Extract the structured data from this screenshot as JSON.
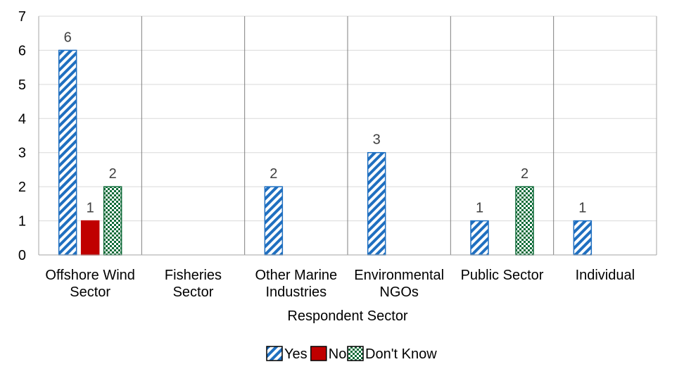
{
  "chart_data": {
    "type": "bar",
    "xlabel": "Respondent Sector",
    "ylabel": "",
    "ylim": [
      0,
      7
    ],
    "yticks": [
      0,
      1,
      2,
      3,
      4,
      5,
      6,
      7
    ],
    "grid": true,
    "legend_position": "bottom",
    "categories": [
      [
        "Offshore Wind",
        "Sector"
      ],
      [
        "Fisheries",
        "Sector"
      ],
      [
        "Other Marine",
        "Industries"
      ],
      [
        "Environmental",
        "NGOs"
      ],
      [
        "Public Sector"
      ],
      [
        "Individual"
      ]
    ],
    "series": [
      {
        "name": "Yes",
        "values": [
          6,
          null,
          2,
          3,
          1,
          1
        ],
        "color": "#1F6FC0",
        "pattern": "diagonal-stripe"
      },
      {
        "name": "No",
        "values": [
          1,
          null,
          null,
          null,
          null,
          null
        ],
        "color": "#C00000",
        "pattern": "solid"
      },
      {
        "name": "Don't Know",
        "values": [
          2,
          null,
          null,
          null,
          2,
          null
        ],
        "color": "#0E6B38",
        "pattern": "checker"
      }
    ]
  }
}
